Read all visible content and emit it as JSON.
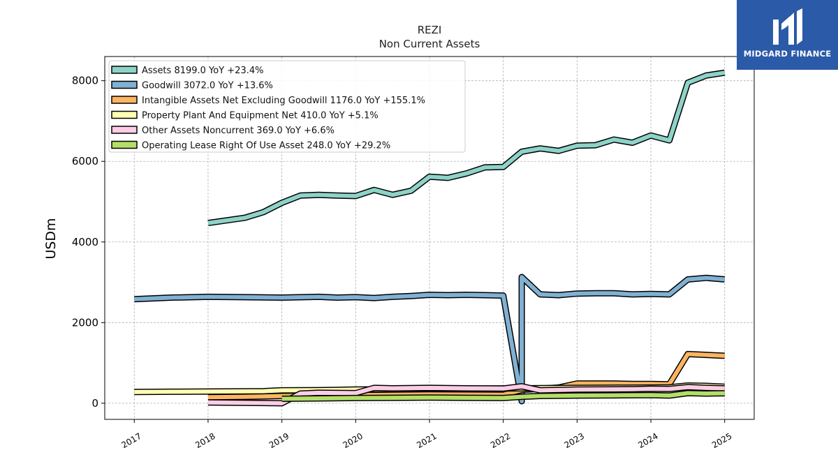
{
  "chart_data": {
    "type": "line",
    "title": "REZI",
    "subtitle": "Non Current  Assets",
    "ylabel": "USDm",
    "xlabel": "",
    "ylim": [
      -400,
      8600
    ],
    "xlim": [
      2016.6,
      2025.4
    ],
    "yticks": [
      0,
      2000,
      4000,
      6000,
      8000
    ],
    "xticks": [
      "2017",
      "2018",
      "2019",
      "2020",
      "2021",
      "2022",
      "2023",
      "2024",
      "2025"
    ],
    "grid": true,
    "legend_position": "top-left",
    "series": [
      {
        "name": "Assets  8199.0 YoY +23.4%",
        "color": "#8dd3c7",
        "points": [
          [
            2018.0,
            4470
          ],
          [
            2018.5,
            4600
          ],
          [
            2018.75,
            4740
          ],
          [
            2019.0,
            4970
          ],
          [
            2019.25,
            5150
          ],
          [
            2019.5,
            5170
          ],
          [
            2019.75,
            5150
          ],
          [
            2020.0,
            5140
          ],
          [
            2020.25,
            5290
          ],
          [
            2020.5,
            5170
          ],
          [
            2020.75,
            5270
          ],
          [
            2021.0,
            5620
          ],
          [
            2021.25,
            5590
          ],
          [
            2021.5,
            5700
          ],
          [
            2021.75,
            5850
          ],
          [
            2022.0,
            5860
          ],
          [
            2022.25,
            6240
          ],
          [
            2022.5,
            6320
          ],
          [
            2022.75,
            6260
          ],
          [
            2023.0,
            6390
          ],
          [
            2023.25,
            6400
          ],
          [
            2023.5,
            6540
          ],
          [
            2023.75,
            6460
          ],
          [
            2024.0,
            6640
          ],
          [
            2024.25,
            6520
          ],
          [
            2024.5,
            7950
          ],
          [
            2024.75,
            8130
          ],
          [
            2025.0,
            8199
          ]
        ]
      },
      {
        "name": "Goodwill  3072.0 YoY +13.6%",
        "color": "#80b1d3",
        "points": [
          [
            2017.0,
            2580
          ],
          [
            2017.5,
            2620
          ],
          [
            2018.0,
            2640
          ],
          [
            2018.5,
            2630
          ],
          [
            2019.0,
            2620
          ],
          [
            2019.5,
            2640
          ],
          [
            2019.75,
            2620
          ],
          [
            2020.0,
            2630
          ],
          [
            2020.25,
            2610
          ],
          [
            2020.5,
            2640
          ],
          [
            2020.75,
            2660
          ],
          [
            2021.0,
            2690
          ],
          [
            2021.25,
            2680
          ],
          [
            2021.5,
            2690
          ],
          [
            2021.75,
            2680
          ],
          [
            2022.0,
            2670
          ],
          [
            2022.25,
            50
          ],
          [
            2022.25,
            3130
          ],
          [
            2022.5,
            2700
          ],
          [
            2022.75,
            2680
          ],
          [
            2023.0,
            2720
          ],
          [
            2023.25,
            2730
          ],
          [
            2023.5,
            2730
          ],
          [
            2023.75,
            2700
          ],
          [
            2024.0,
            2710
          ],
          [
            2024.25,
            2700
          ],
          [
            2024.5,
            3070
          ],
          [
            2024.75,
            3110
          ],
          [
            2025.0,
            3072
          ]
        ]
      },
      {
        "name": "Intangible Assets Net Excluding Goodwill  1176.0 YoY +155.1%",
        "color": "#fdb462",
        "points": [
          [
            2018.0,
            150
          ],
          [
            2018.5,
            160
          ],
          [
            2019.0,
            180
          ],
          [
            2019.5,
            190
          ],
          [
            2020.0,
            200
          ],
          [
            2020.5,
            210
          ],
          [
            2021.0,
            220
          ],
          [
            2021.5,
            215
          ],
          [
            2022.0,
            210
          ],
          [
            2022.25,
            330
          ],
          [
            2022.5,
            360
          ],
          [
            2022.75,
            390
          ],
          [
            2023.0,
            490
          ],
          [
            2023.5,
            490
          ],
          [
            2023.75,
            480
          ],
          [
            2024.0,
            480
          ],
          [
            2024.25,
            470
          ],
          [
            2024.5,
            1220
          ],
          [
            2024.75,
            1200
          ],
          [
            2025.0,
            1176
          ]
        ]
      },
      {
        "name": "Property Plant And Equipment Net  410.0 YoY +5.1%",
        "color": "#ffffb3",
        "points": [
          [
            2017.0,
            280
          ],
          [
            2017.5,
            285
          ],
          [
            2018.0,
            290
          ],
          [
            2018.75,
            300
          ],
          [
            2019.0,
            320
          ],
          [
            2019.5,
            325
          ],
          [
            2019.75,
            330
          ],
          [
            2020.0,
            340
          ],
          [
            2020.25,
            345
          ],
          [
            2020.5,
            350
          ],
          [
            2021.0,
            355
          ],
          [
            2021.5,
            360
          ],
          [
            2022.0,
            365
          ],
          [
            2022.25,
            370
          ],
          [
            2022.5,
            375
          ],
          [
            2023.0,
            380
          ],
          [
            2023.5,
            385
          ],
          [
            2024.0,
            390
          ],
          [
            2024.25,
            395
          ],
          [
            2024.5,
            440
          ],
          [
            2024.75,
            430
          ],
          [
            2025.0,
            410
          ]
        ]
      },
      {
        "name": "Other Assets Noncurrent  369.0 YoY +6.6%",
        "color": "#fccde5",
        "points": [
          [
            2018.0,
            20
          ],
          [
            2019.0,
            0
          ],
          [
            2019.25,
            240
          ],
          [
            2019.5,
            260
          ],
          [
            2020.0,
            250
          ],
          [
            2020.25,
            380
          ],
          [
            2020.5,
            370
          ],
          [
            2021.0,
            380
          ],
          [
            2021.5,
            370
          ],
          [
            2022.0,
            365
          ],
          [
            2022.25,
            420
          ],
          [
            2022.5,
            320
          ],
          [
            2023.0,
            340
          ],
          [
            2023.5,
            345
          ],
          [
            2023.75,
            350
          ],
          [
            2024.0,
            360
          ],
          [
            2024.25,
            355
          ],
          [
            2024.5,
            400
          ],
          [
            2024.75,
            380
          ],
          [
            2025.0,
            369
          ]
        ]
      },
      {
        "name": "Operating Lease Right Of Use Asset  248.0 YoY +29.2%",
        "color": "#b3de69",
        "points": [
          [
            2019.0,
            110
          ],
          [
            2019.5,
            120
          ],
          [
            2020.0,
            130
          ],
          [
            2020.5,
            135
          ],
          [
            2021.0,
            140
          ],
          [
            2021.5,
            135
          ],
          [
            2022.0,
            130
          ],
          [
            2022.25,
            160
          ],
          [
            2022.5,
            180
          ],
          [
            2023.0,
            190
          ],
          [
            2023.5,
            195
          ],
          [
            2024.0,
            200
          ],
          [
            2024.25,
            190
          ],
          [
            2024.5,
            250
          ],
          [
            2024.75,
            240
          ],
          [
            2025.0,
            248
          ]
        ]
      }
    ]
  },
  "logo": {
    "brand_text": "MIDGARD FINANCE",
    "icon": "midgard-logo-icon"
  }
}
